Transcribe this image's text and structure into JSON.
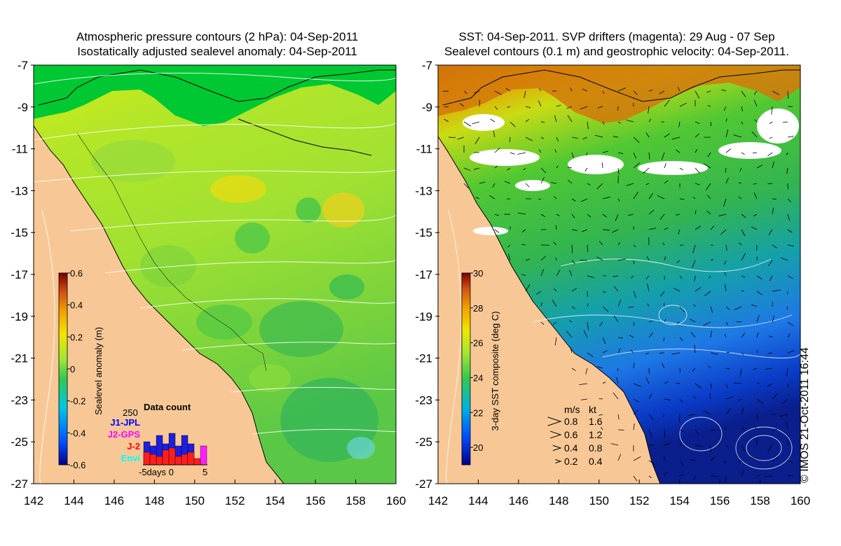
{
  "left_panel": {
    "title_line1": "Atmospheric pressure contours (2 hPa): 04-Sep-2011",
    "title_line2": "Isostatically adjusted sealevel anomaly: 04-Sep-2011",
    "colorbar": {
      "label": "Sealevel anomaly (m)",
      "ticks": [
        "-0.6",
        "-0.4",
        "-0.2",
        "0",
        "0.2",
        "0.4",
        "0.6"
      ],
      "range": [
        -0.6,
        0.6
      ]
    },
    "inset": {
      "title": "Data count",
      "ymax_label": "250",
      "xlabel": "-5days 0",
      "xtick_right": "5",
      "legend": [
        {
          "name": "J1-JPL",
          "color": "#0000ff"
        },
        {
          "name": "J2-GPS",
          "color": "#ff00ff"
        },
        {
          "name": "J-2",
          "color": "#ff0000"
        },
        {
          "name": "Envi",
          "color": "#00ffff"
        }
      ],
      "bars_blue": [
        0.55,
        0.45,
        0.7,
        0.5,
        0.75,
        0.45,
        0.7,
        0.5
      ],
      "bars_red": [
        0.3,
        0.25,
        0.2,
        0.35,
        0.4,
        0.2,
        0.25,
        0.3,
        0.15
      ],
      "bars_magenta": [
        0.45
      ]
    }
  },
  "right_panel": {
    "title_line1": "SST: 04-Sep-2011. SVP drifters (magenta): 29 Aug - 07 Sep",
    "title_line2": "Sealevel contours (0.1 m) and geostrophic velocity: 04-Sep-2011.",
    "colorbar": {
      "label": "3-day SST composite (deg C)",
      "ticks": [
        "20",
        "22",
        "24",
        "26",
        "28",
        "30"
      ],
      "range": [
        19,
        30
      ]
    },
    "velocity_legend": {
      "header_ms": "m/s",
      "header_kt": "kt",
      "rows": [
        {
          "ms": "0.8",
          "kt": "1.6"
        },
        {
          "ms": "0.6",
          "kt": "1.2"
        },
        {
          "ms": "0.4",
          "kt": "0.8"
        },
        {
          "ms": "0.2",
          "kt": "0.4"
        }
      ]
    }
  },
  "axes": {
    "lat_ticks": [
      "-7",
      "-9",
      "-11",
      "-13",
      "-15",
      "-17",
      "-19",
      "-21",
      "-23",
      "-25",
      "-27"
    ],
    "lon_ticks": [
      "142",
      "144",
      "146",
      "148",
      "150",
      "152",
      "154",
      "156",
      "158",
      "160"
    ],
    "lat_range": [
      -27,
      -7
    ],
    "lon_range": [
      142,
      160
    ]
  },
  "credit": "© IMOS 21-Oct-2011 16:44",
  "colors": {
    "land": "#f7c896",
    "cloud": "#ffffff"
  }
}
